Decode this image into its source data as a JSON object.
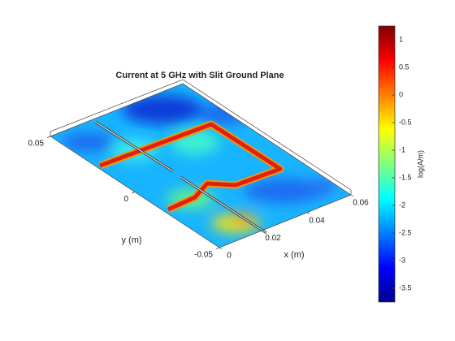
{
  "chart_data": {
    "type": "surface",
    "title": "Current at 5 GHz with Slit Ground Plane",
    "xlabel": "x (m)",
    "ylabel": "y (m)",
    "xlim": [
      0,
      0.06
    ],
    "xticks": [
      0,
      0.02,
      0.04,
      0.06
    ],
    "ylim": [
      -0.05,
      0.05
    ],
    "yticks": [
      -0.05,
      0,
      0.05
    ],
    "colorbar": {
      "label": "log(A/m)",
      "colormap": "jet",
      "clim": [
        -3.75,
        1.25
      ],
      "ticks": [
        -3.5,
        -3,
        -2.5,
        -2,
        -1.5,
        -1,
        -0.5,
        0,
        0.5,
        1
      ]
    }
  }
}
